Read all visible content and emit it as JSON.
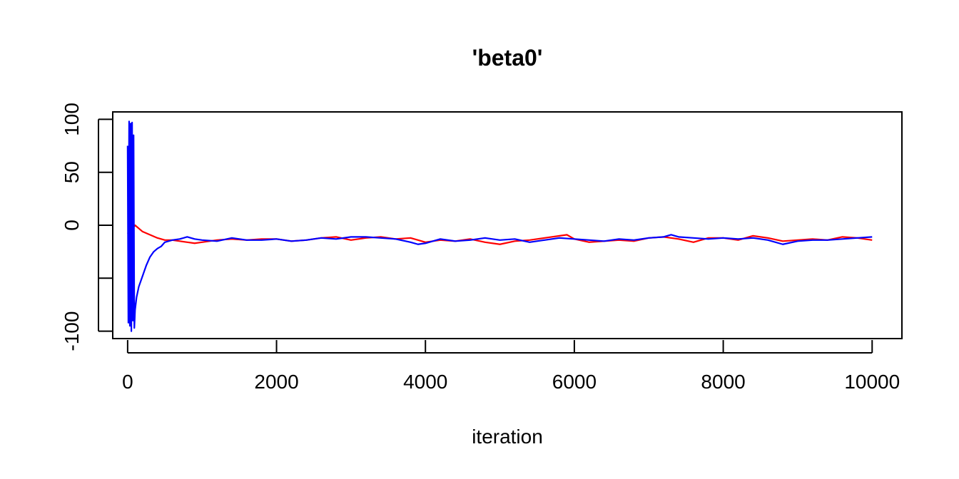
{
  "chart_data": {
    "type": "line",
    "title": "'beta0'",
    "xlabel": "iteration",
    "ylabel": "",
    "xlim": [
      -200,
      10400
    ],
    "ylim": [
      -107,
      107
    ],
    "xticks": [
      0,
      2000,
      4000,
      6000,
      8000,
      10000
    ],
    "xtick_labels": [
      "0",
      "2000",
      "4000",
      "6000",
      "8000",
      "10000"
    ],
    "yticks": [
      -100,
      -50,
      0,
      50,
      100
    ],
    "ytick_labels": [
      "-100",
      "",
      "0",
      "50",
      "100"
    ],
    "grid": false,
    "legend": "none",
    "series": [
      {
        "color": "#ff0000",
        "x": [
          0,
          50,
          100,
          150,
          200,
          300,
          400,
          500,
          600,
          700,
          800,
          900,
          1000,
          1200,
          1400,
          1600,
          1800,
          2000,
          2200,
          2400,
          2600,
          2800,
          3000,
          3200,
          3400,
          3600,
          3800,
          4000,
          4200,
          4400,
          4600,
          4800,
          5000,
          5200,
          5400,
          5600,
          5800,
          5900,
          6000,
          6200,
          6400,
          6600,
          6800,
          7000,
          7200,
          7400,
          7600,
          7800,
          8000,
          8200,
          8400,
          8600,
          8800,
          9000,
          9200,
          9400,
          9600,
          9800,
          10000
        ],
        "y": [
          -8,
          -4,
          0,
          -3,
          -6,
          -9,
          -12,
          -14,
          -14,
          -15,
          -16,
          -17,
          -16,
          -14,
          -13,
          -14,
          -13,
          -13,
          -15,
          -14,
          -12,
          -11,
          -14,
          -12,
          -11,
          -13,
          -12,
          -16,
          -14,
          -15,
          -13,
          -16,
          -18,
          -15,
          -14,
          -12,
          -10,
          -9,
          -13,
          -16,
          -15,
          -14,
          -15,
          -12,
          -11,
          -13,
          -16,
          -12,
          -12,
          -14,
          -10,
          -12,
          -15,
          -14,
          -13,
          -14,
          -11,
          -12,
          -14
        ]
      },
      {
        "color": "#0000ff",
        "x": [
          0,
          10,
          20,
          30,
          40,
          50,
          60,
          70,
          80,
          90,
          100,
          120,
          150,
          200,
          250,
          300,
          350,
          400,
          450,
          500,
          600,
          700,
          800,
          900,
          1000,
          1200,
          1400,
          1600,
          1800,
          2000,
          2200,
          2400,
          2600,
          2800,
          3000,
          3200,
          3400,
          3600,
          3800,
          3900,
          4000,
          4200,
          4400,
          4600,
          4800,
          5000,
          5200,
          5400,
          5600,
          5800,
          6000,
          6200,
          6400,
          6600,
          6800,
          7000,
          7200,
          7300,
          7400,
          7600,
          7800,
          8000,
          8200,
          8400,
          8600,
          8800,
          9000,
          9200,
          9400,
          9600,
          9800,
          10000
        ],
        "y": [
          75,
          -92,
          98,
          -95,
          96,
          -100,
          97,
          -90,
          85,
          -97,
          -80,
          -68,
          -58,
          -48,
          -38,
          -30,
          -25,
          -22,
          -20,
          -16,
          -14,
          -13,
          -11,
          -13,
          -14,
          -15,
          -12,
          -14,
          -14,
          -13,
          -15,
          -14,
          -12,
          -13,
          -11,
          -11,
          -12,
          -13,
          -16,
          -18,
          -17,
          -13,
          -15,
          -14,
          -12,
          -14,
          -13,
          -16,
          -14,
          -12,
          -13,
          -14,
          -15,
          -13,
          -14,
          -12,
          -11,
          -9,
          -11,
          -12,
          -13,
          -12,
          -13,
          -12,
          -14,
          -18,
          -15,
          -14,
          -14,
          -13,
          -12,
          -11
        ]
      }
    ]
  }
}
